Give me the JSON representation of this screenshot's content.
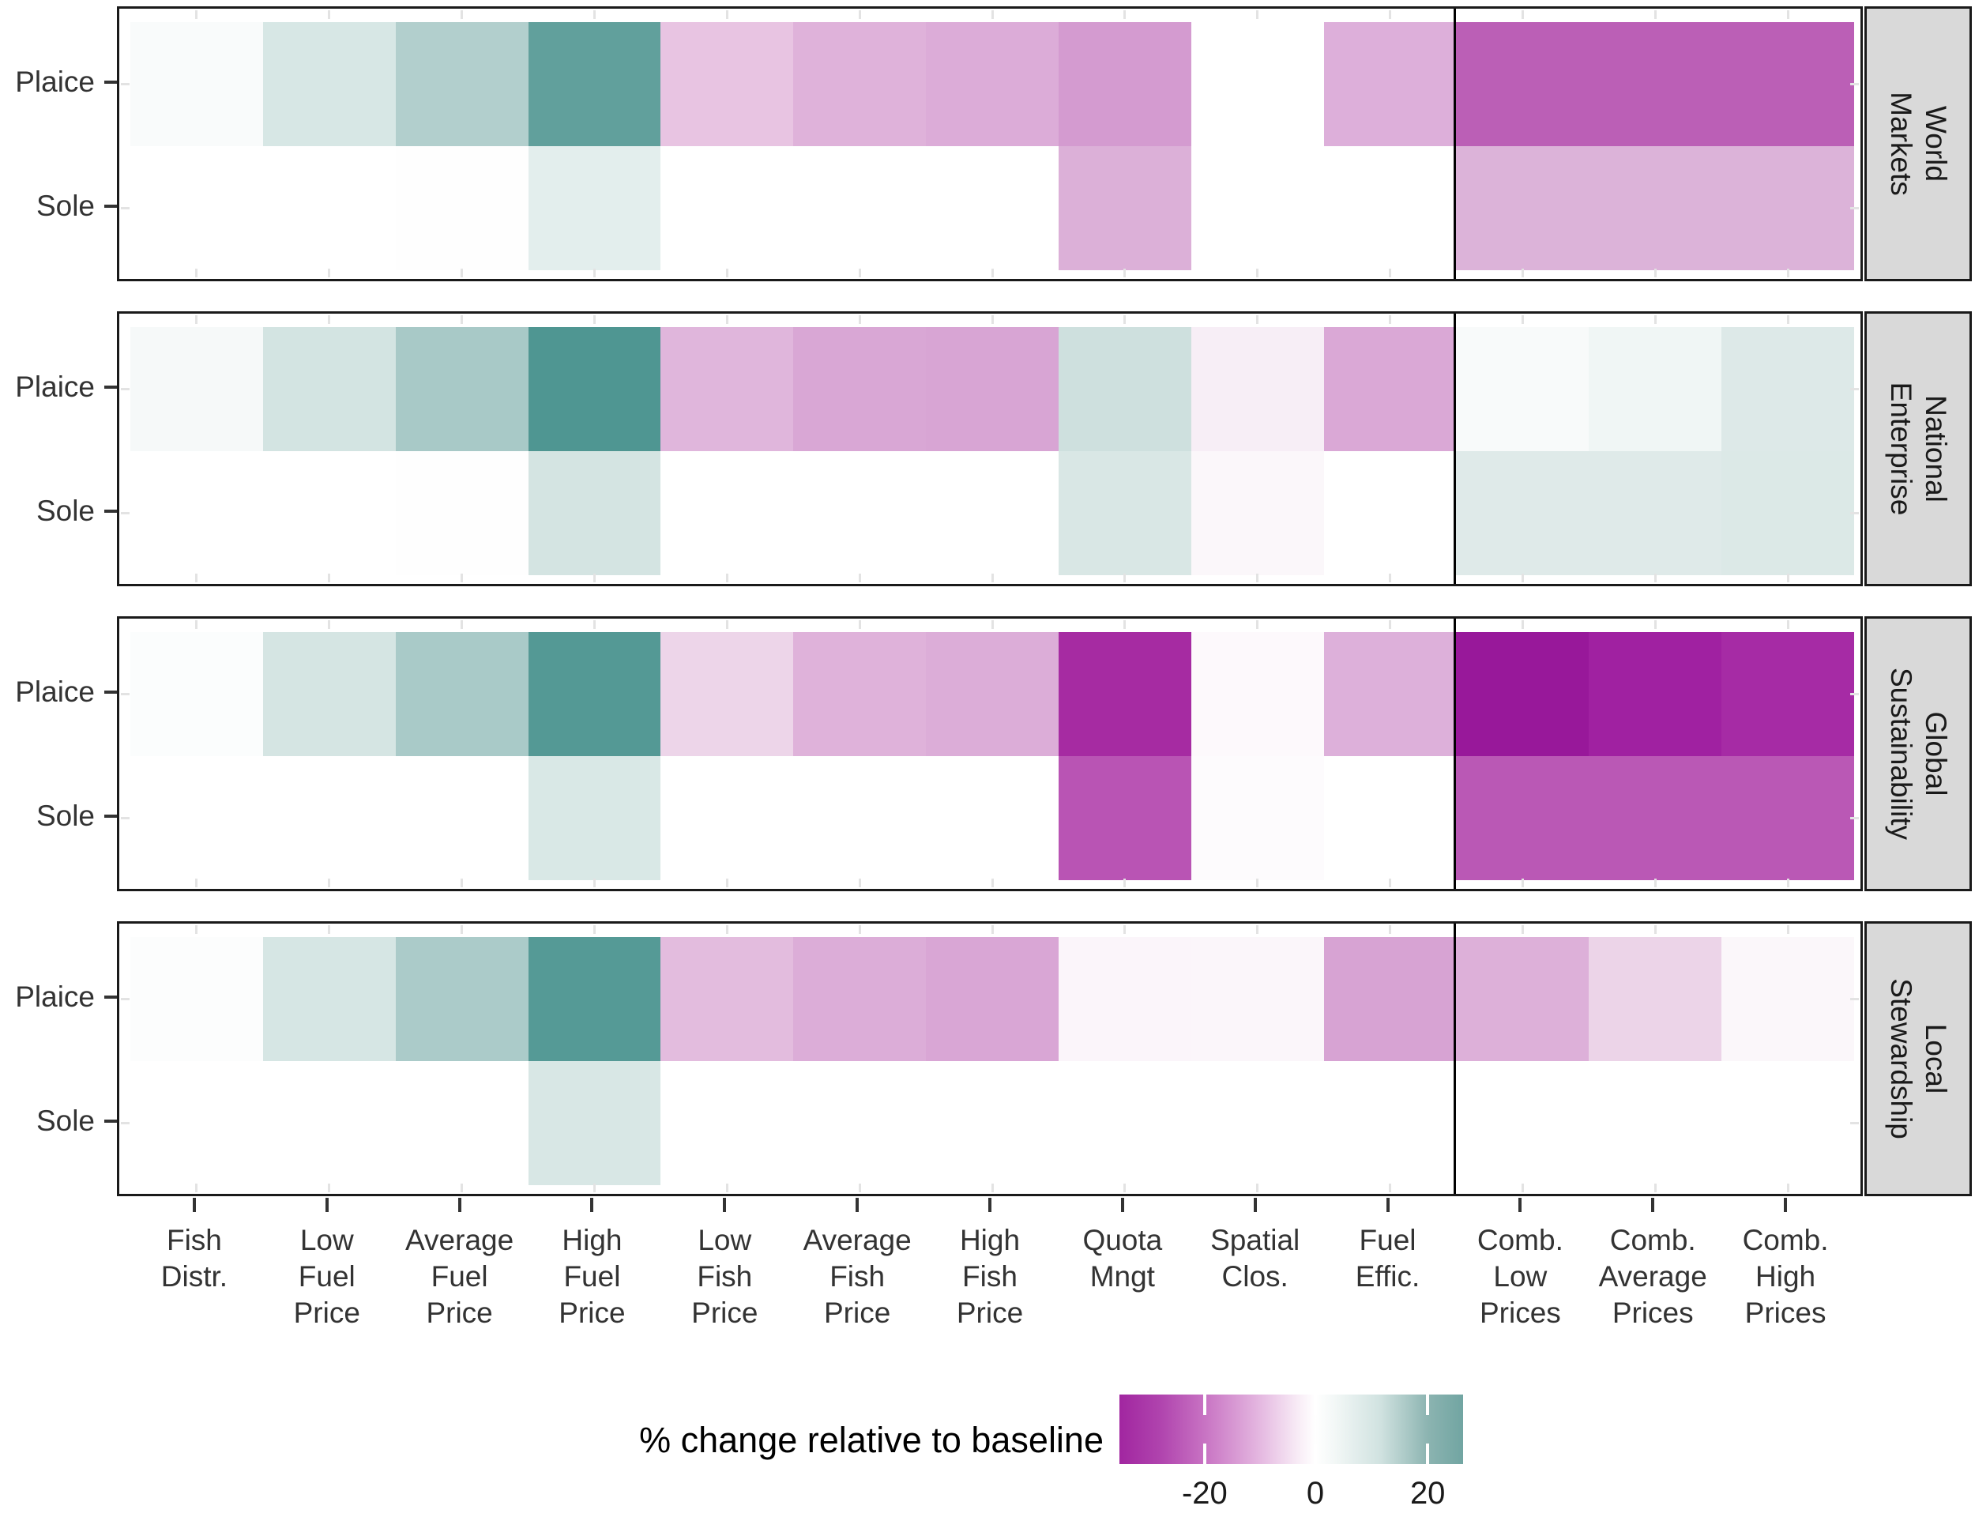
{
  "chart_data": {
    "type": "heatmap",
    "description": "% change relative to baseline for Plaice and Sole under management scenarios, faceted by four future worlds",
    "rows": [
      "Plaice",
      "Sole"
    ],
    "columns": [
      "Fish Distr.",
      "Low Fuel Price",
      "Average Fuel Price",
      "High Fuel Price",
      "Low Fish Price",
      "Average Fish Price",
      "High Fish Price",
      "Quota Mngt",
      "Spatial Clos.",
      "Fuel Effic.",
      "Comb. Low Prices",
      "Comb. Average Prices",
      "Comb. High Prices"
    ],
    "column_label_lines": [
      [
        "Fish",
        "Distr."
      ],
      [
        "Low",
        "Fuel",
        "Price"
      ],
      [
        "Average",
        "Fuel",
        "Price"
      ],
      [
        "High",
        "Fuel",
        "Price"
      ],
      [
        "Low",
        "Fish",
        "Price"
      ],
      [
        "Average",
        "Fish",
        "Price"
      ],
      [
        "High",
        "Fish",
        "Price"
      ],
      [
        "Quota",
        "Mngt"
      ],
      [
        "Spatial",
        "Clos."
      ],
      [
        "Fuel",
        "Effic."
      ],
      [
        "Comb.",
        "Low",
        "Prices"
      ],
      [
        "Comb.",
        "Average",
        "Prices"
      ],
      [
        "Comb.",
        "High",
        "Prices"
      ]
    ],
    "separator_after_column": 10,
    "facets": [
      {
        "label": "World Markets",
        "label_lines": "World\nMarkets",
        "series": [
          {
            "row": "Plaice",
            "values": [
              0.5,
              6,
              12,
              27,
              -7,
              -10,
              -11,
              -14,
              0,
              -10,
              -22,
              -22,
              -22
            ],
            "colors": [
              "#F9FBFB",
              "#D7E7E5",
              "#B2CFCD",
              "#61A09C",
              "#E8C4E2",
              "#DFB2DA",
              "#DCACD8",
              "#D49BD0",
              "#FFFFFF",
              "#DDAFDA",
              "#BB5FB6",
              "#BB5FB6",
              "#BB5FB6"
            ]
          },
          {
            "row": "Sole",
            "values": [
              0,
              0,
              0,
              4,
              0,
              0,
              0,
              -10,
              0,
              0,
              -10,
              -10,
              -10
            ],
            "colors": [
              "#FFFFFF",
              "#FFFFFF",
              "#FEFEFE",
              "#E3EEED",
              "#FFFFFF",
              "#FFFFFF",
              "#FFFFFF",
              "#DCB0D8",
              "#FFFFFF",
              "#FFFFFF",
              "#DCB3D9",
              "#DCB3D9",
              "#DCB3D9"
            ]
          }
        ]
      },
      {
        "label": "National Enterprise",
        "label_lines": "National\nEnterprise",
        "series": [
          {
            "row": "Plaice",
            "values": [
              1,
              7,
              14,
              31,
              -9,
              -12,
              -13,
              8,
              -2,
              -12,
              1,
              3,
              6
            ],
            "colors": [
              "#F6F9F9",
              "#D3E4E2",
              "#A8C9C7",
              "#4F9692",
              "#E0B6DC",
              "#D9A7D5",
              "#D8A5D4",
              "#CEE0DE",
              "#F7EEF6",
              "#DAA8D6",
              "#F8FAFA",
              "#F0F6F5",
              "#DDE9E8"
            ]
          },
          {
            "row": "Sole",
            "values": [
              0,
              0,
              0,
              7,
              0,
              0,
              0,
              6,
              -1,
              0,
              5,
              5,
              6
            ],
            "colors": [
              "#FFFFFF",
              "#FFFFFF",
              "#FEFEFE",
              "#D4E4E2",
              "#FFFFFF",
              "#FFFFFF",
              "#FFFFFF",
              "#D9E7E5",
              "#FBF7FA",
              "#FFFFFF",
              "#DFEAE9",
              "#DFEAE9",
              "#DCE9E7"
            ]
          }
        ]
      },
      {
        "label": "Global Sustainability",
        "label_lines": "Global\nSustainability",
        "series": [
          {
            "row": "Plaice",
            "values": [
              0.5,
              6.5,
              14,
              29,
              -5,
              -10,
              -11,
              -30,
              -0.5,
              -11,
              -34,
              -32,
              -30
            ],
            "colors": [
              "#FBFDFD",
              "#D5E5E3",
              "#A9CAC8",
              "#549995",
              "#EDD5E9",
              "#DFB2DA",
              "#DCADD8",
              "#A62BA2",
              "#FDF9FC",
              "#DDB0DA",
              "#98189A",
              "#A021A1",
              "#A62BA5"
            ]
          },
          {
            "row": "Sole",
            "values": [
              0,
              0,
              0,
              6,
              0,
              0,
              0,
              -21,
              -0.5,
              0,
              -21,
              -21,
              -21
            ],
            "colors": [
              "#FFFFFF",
              "#FFFFFF",
              "#FFFFFF",
              "#D9E8E6",
              "#FFFFFF",
              "#FFFFFF",
              "#FFFFFF",
              "#B954B4",
              "#FDFBFD",
              "#FFFFFF",
              "#BA58B5",
              "#BA58B5",
              "#BA58B5"
            ]
          }
        ]
      },
      {
        "label": "Local Stewardship",
        "label_lines": "Local\nStewardship",
        "series": [
          {
            "row": "Plaice",
            "values": [
              0.5,
              6,
              13,
              29,
              -8,
              -11,
              -12,
              -1,
              -0.5,
              -13,
              -10,
              -5,
              -1
            ],
            "colors": [
              "#FCFDFD",
              "#D6E6E4",
              "#ABCBC9",
              "#559A96",
              "#E3BCDE",
              "#DCADD8",
              "#D9A6D5",
              "#FBF5FA",
              "#FBF6FA",
              "#D7A3D3",
              "#DDB0D9",
              "#ECD4E8",
              "#FBF7FA"
            ]
          },
          {
            "row": "Sole",
            "values": [
              0,
              0,
              0,
              6,
              0,
              0,
              0,
              0,
              0,
              0,
              0,
              0,
              0
            ],
            "colors": [
              "#FFFFFF",
              "#FFFFFF",
              "#FFFFFF",
              "#D8E7E5",
              "#FFFFFF",
              "#FFFFFF",
              "#FFFFFF",
              "#FFFFFF",
              "#FFFFFF",
              "#FFFFFF",
              "#FFFFFF",
              "#FFFFFF",
              "#FFFFFF"
            ]
          }
        ]
      }
    ],
    "legend": {
      "title": "% change relative to baseline",
      "ticks": [
        "-20",
        "0",
        "20"
      ],
      "tick_positions_pct": [
        24.8,
        57.0,
        89.7
      ],
      "gradient_stops": [
        {
          "pos": 0,
          "color": "#A126A0"
        },
        {
          "pos": 12,
          "color": "#B044AE"
        },
        {
          "pos": 24.8,
          "color": "#C873C3"
        },
        {
          "pos": 40,
          "color": "#E3B4DF"
        },
        {
          "pos": 52,
          "color": "#F8ECF6"
        },
        {
          "pos": 57,
          "color": "#FFFFFF"
        },
        {
          "pos": 63,
          "color": "#F2F7F6"
        },
        {
          "pos": 76,
          "color": "#D0E2E0"
        },
        {
          "pos": 89.7,
          "color": "#8CB4B1"
        },
        {
          "pos": 100,
          "color": "#71A5A2"
        }
      ]
    },
    "styles": {
      "panel_border": "#1a1a1a",
      "strip_bg": "#d9d9d9",
      "axis_text": "#333333",
      "minor_tick": "#e3e3e3",
      "separator": "#000000"
    }
  }
}
